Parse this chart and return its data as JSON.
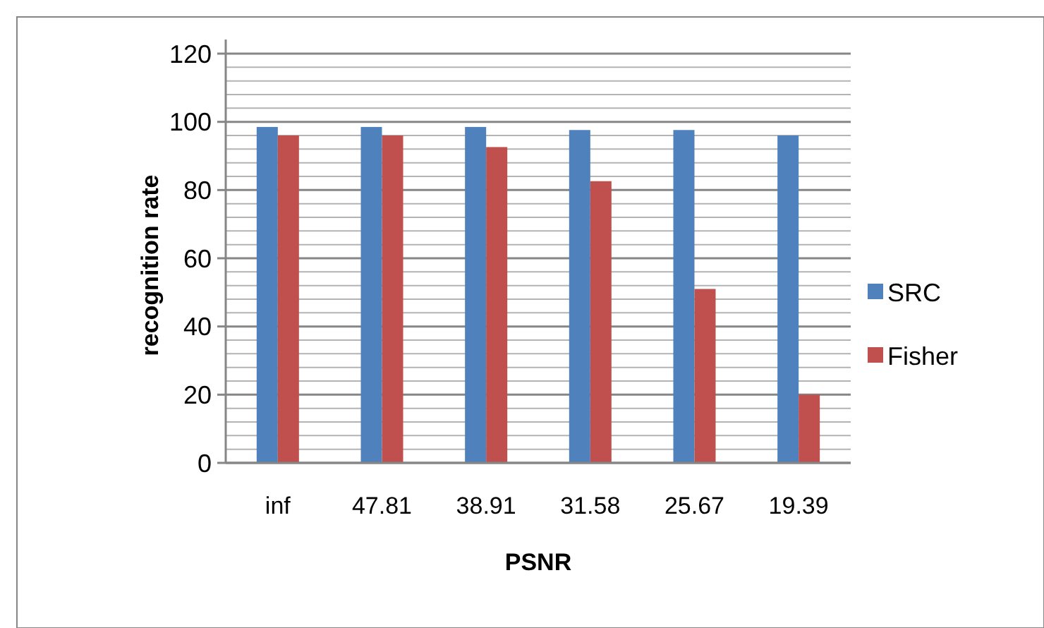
{
  "chart_data": {
    "type": "bar",
    "xlabel": "PSNR",
    "ylabel": "recognition rate",
    "categories": [
      "inf",
      "47.81",
      "38.91",
      "31.58",
      "25.67",
      "19.39"
    ],
    "series": [
      {
        "name": "SRC",
        "color": "#4f81bd",
        "values": [
          98.5,
          98.5,
          98.5,
          97.6,
          97.6,
          96
        ]
      },
      {
        "name": "Fisher",
        "color": "#c0504d",
        "values": [
          96,
          96,
          92.6,
          82.6,
          51,
          20
        ]
      }
    ],
    "ylim": [
      0,
      120
    ],
    "yticks": [
      0,
      {
        "value": 4,
        "label": null
      },
      {
        "value": 8,
        "label": null
      },
      {
        "value": 12,
        "label": null
      },
      {
        "value": 16,
        "label": null
      },
      20,
      {
        "value": 24,
        "label": null
      },
      {
        "value": 28,
        "label": null
      },
      {
        "value": 32,
        "label": null
      },
      {
        "value": 36,
        "label": null
      },
      40,
      {
        "value": 44,
        "label": null
      },
      {
        "value": 48,
        "label": null
      },
      {
        "value": 52,
        "label": null
      },
      {
        "value": 56,
        "label": null
      },
      60,
      {
        "value": 64,
        "label": null
      },
      {
        "value": 68,
        "label": null
      },
      {
        "value": 72,
        "label": null
      },
      {
        "value": 76,
        "label": null
      },
      80,
      {
        "value": 84,
        "label": null
      },
      {
        "value": 88,
        "label": null
      },
      {
        "value": 92,
        "label": null
      },
      {
        "value": 96,
        "label": null
      },
      100,
      {
        "value": 104,
        "label": null
      },
      {
        "value": 108,
        "label": null
      },
      {
        "value": 112,
        "label": null
      },
      {
        "value": 116,
        "label": null
      },
      120
    ],
    "grid": true,
    "legend": "right"
  }
}
